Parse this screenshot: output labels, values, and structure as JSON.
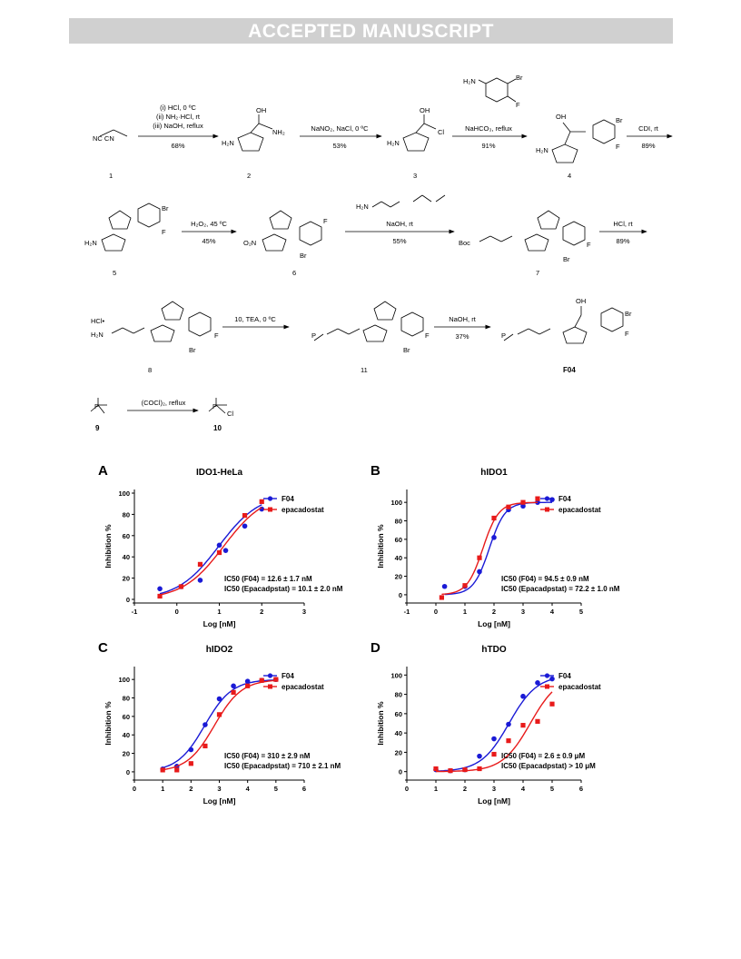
{
  "banner": "ACCEPTED MANUSCRIPT",
  "scheme": {
    "compound1": "NC   CN",
    "label1": "1",
    "step1": {
      "l1": "(i) HCl, 0 ºC",
      "l2": "(ii) NH₂·HCl, rt",
      "l3": "(iii) NaOH, reflux",
      "yield": "68%"
    },
    "label2": "2",
    "step2": {
      "l1": "NaNO₂, NaCl, 0 ºC",
      "yield": "53%"
    },
    "label3": "3",
    "step3": {
      "l1": "NaHCO₃, reflux",
      "yield": "91%"
    },
    "label4": "4",
    "step4": {
      "l1": "CDI, rt",
      "yield": "89%"
    },
    "label5": "5",
    "step5": {
      "l1": "H₂O₂, 45 ºC",
      "yield": "45%"
    },
    "label6": "6",
    "step6": {
      "l1": "NaOH, rt",
      "yield": "55%"
    },
    "label7": "7",
    "step7": {
      "l1": "HCl, rt",
      "yield": "89%"
    },
    "label8": "8",
    "step8": {
      "l1": "10, TEA, 0 ºC"
    },
    "label11": "11",
    "step9": {
      "l1": "NaOH, rt",
      "yield": "37%"
    },
    "labelF04": "F04",
    "label9": "9",
    "step10": {
      "l1": "(COCl)₂, reflux"
    },
    "label10": "10",
    "atoms": {
      "OH": "OH",
      "NH2": "NH₂",
      "N": "N",
      "O": "O",
      "Cl": "Cl",
      "Br": "Br",
      "F": "F",
      "H2N": "H₂N",
      "O2N": "O₂N",
      "Boc": "Boc",
      "H": "H",
      "HCl": "HCl•",
      "P": "P"
    }
  },
  "chart_data": [
    {
      "panel": "A",
      "type": "scatter",
      "title": "IDO1-HeLa",
      "xlabel": "Log [nM]",
      "ylabel": "Inhibition %",
      "xlim": [
        -1,
        3
      ],
      "ylim": [
        0,
        100
      ],
      "xticks": [
        "-1",
        "0",
        "1",
        "2",
        "3"
      ],
      "yticks": [
        "0",
        "20",
        "40",
        "60",
        "80",
        "100"
      ],
      "series": [
        {
          "name": "F04",
          "color": "#1a1ad6",
          "marker": "circle",
          "x": [
            -0.4,
            0.1,
            0.55,
            1.0,
            1.15,
            1.6,
            2.0
          ],
          "y": [
            10,
            12,
            18,
            51,
            46,
            69,
            85
          ]
        },
        {
          "name": "epacadostat",
          "color": "#e81a1a",
          "marker": "square",
          "x": [
            -0.4,
            0.1,
            0.55,
            1.0,
            1.6,
            2.0
          ],
          "y": [
            3,
            12,
            33,
            44,
            79,
            92
          ]
        }
      ],
      "annotations": [
        "IC50 (F04) = 12.6 ± 1.7 nM",
        "IC50 (Epacadpstat) = 10.1 ± 2.0 nM"
      ]
    },
    {
      "panel": "B",
      "type": "scatter",
      "title": "hIDO1",
      "xlabel": "Log [nM]",
      "ylabel": "Inhibition %",
      "xlim": [
        -1,
        5
      ],
      "ylim": [
        -5,
        110
      ],
      "xticks": [
        "-1",
        "0",
        "1",
        "2",
        "3",
        "4",
        "5"
      ],
      "yticks": [
        "0",
        "20",
        "40",
        "60",
        "80",
        "100"
      ],
      "series": [
        {
          "name": "F04",
          "color": "#1a1ad6",
          "marker": "circle",
          "x": [
            0.3,
            1.0,
            1.5,
            2.0,
            2.5,
            3.0,
            3.5,
            4.0
          ],
          "y": [
            9,
            9,
            25,
            62,
            92,
            96,
            100,
            103
          ]
        },
        {
          "name": "epacadostat",
          "color": "#e81a1a",
          "marker": "square",
          "x": [
            0.2,
            1.0,
            1.5,
            2.0,
            2.5,
            3.0,
            3.5
          ],
          "y": [
            -3,
            10,
            40,
            83,
            95,
            100,
            104
          ]
        }
      ],
      "annotations": [
        "IC50 (F04) = 94.5 ± 0.9 nM",
        "IC50 (Epacadpstat) = 72.2 ± 1.0 nM"
      ]
    },
    {
      "panel": "C",
      "type": "scatter",
      "title": "hIDO2",
      "xlabel": "Log [nM]",
      "ylabel": "Inhibition %",
      "xlim": [
        0,
        6
      ],
      "ylim": [
        -5,
        110
      ],
      "xticks": [
        "0",
        "1",
        "2",
        "3",
        "4",
        "5",
        "6"
      ],
      "yticks": [
        "0",
        "20",
        "40",
        "60",
        "80",
        "100"
      ],
      "series": [
        {
          "name": "F04",
          "color": "#1a1ad6",
          "marker": "circle",
          "x": [
            1.0,
            1.5,
            2.0,
            2.5,
            3.0,
            3.5,
            4.0,
            4.5,
            5.0
          ],
          "y": [
            3,
            6,
            24,
            51,
            79,
            93,
            98,
            99,
            100
          ]
        },
        {
          "name": "epacadostat",
          "color": "#e81a1a",
          "marker": "square",
          "x": [
            1.0,
            1.5,
            2.0,
            2.5,
            3.0,
            3.5,
            4.0,
            4.5,
            5.0
          ],
          "y": [
            2,
            2,
            9,
            28,
            62,
            86,
            93,
            99,
            100
          ]
        }
      ],
      "annotations": [
        "IC50 (F04) = 310 ± 2.9 nM",
        "IC50 (Epacadpstat) = 710 ± 2.1 nM"
      ]
    },
    {
      "panel": "D",
      "type": "scatter",
      "title": "hTDO",
      "xlabel": "Log [nM]",
      "ylabel": "Inhibition %",
      "xlim": [
        0,
        6
      ],
      "ylim": [
        -5,
        105
      ],
      "xticks": [
        "0",
        "1",
        "2",
        "3",
        "4",
        "5",
        "6"
      ],
      "yticks": [
        "0",
        "20",
        "40",
        "60",
        "80",
        "100"
      ],
      "series": [
        {
          "name": "F04",
          "color": "#1a1ad6",
          "marker": "circle",
          "x": [
            1.0,
            1.5,
            2.0,
            2.5,
            3.0,
            3.5,
            4.0,
            4.5,
            5.0
          ],
          "y": [
            2,
            1,
            2,
            16,
            34,
            49,
            78,
            92,
            96
          ]
        },
        {
          "name": "epacadostat",
          "color": "#e81a1a",
          "marker": "square",
          "x": [
            1.0,
            1.5,
            2.0,
            2.5,
            3.0,
            3.5,
            4.0,
            4.5,
            5.0
          ],
          "y": [
            3,
            1,
            2,
            3,
            18,
            32,
            48,
            52,
            70
          ]
        }
      ],
      "annotations": [
        "IC50 (F04) = 2.6 ± 0.9 μM",
        "IC50 (Epacadpstat) > 10 μM"
      ]
    }
  ]
}
